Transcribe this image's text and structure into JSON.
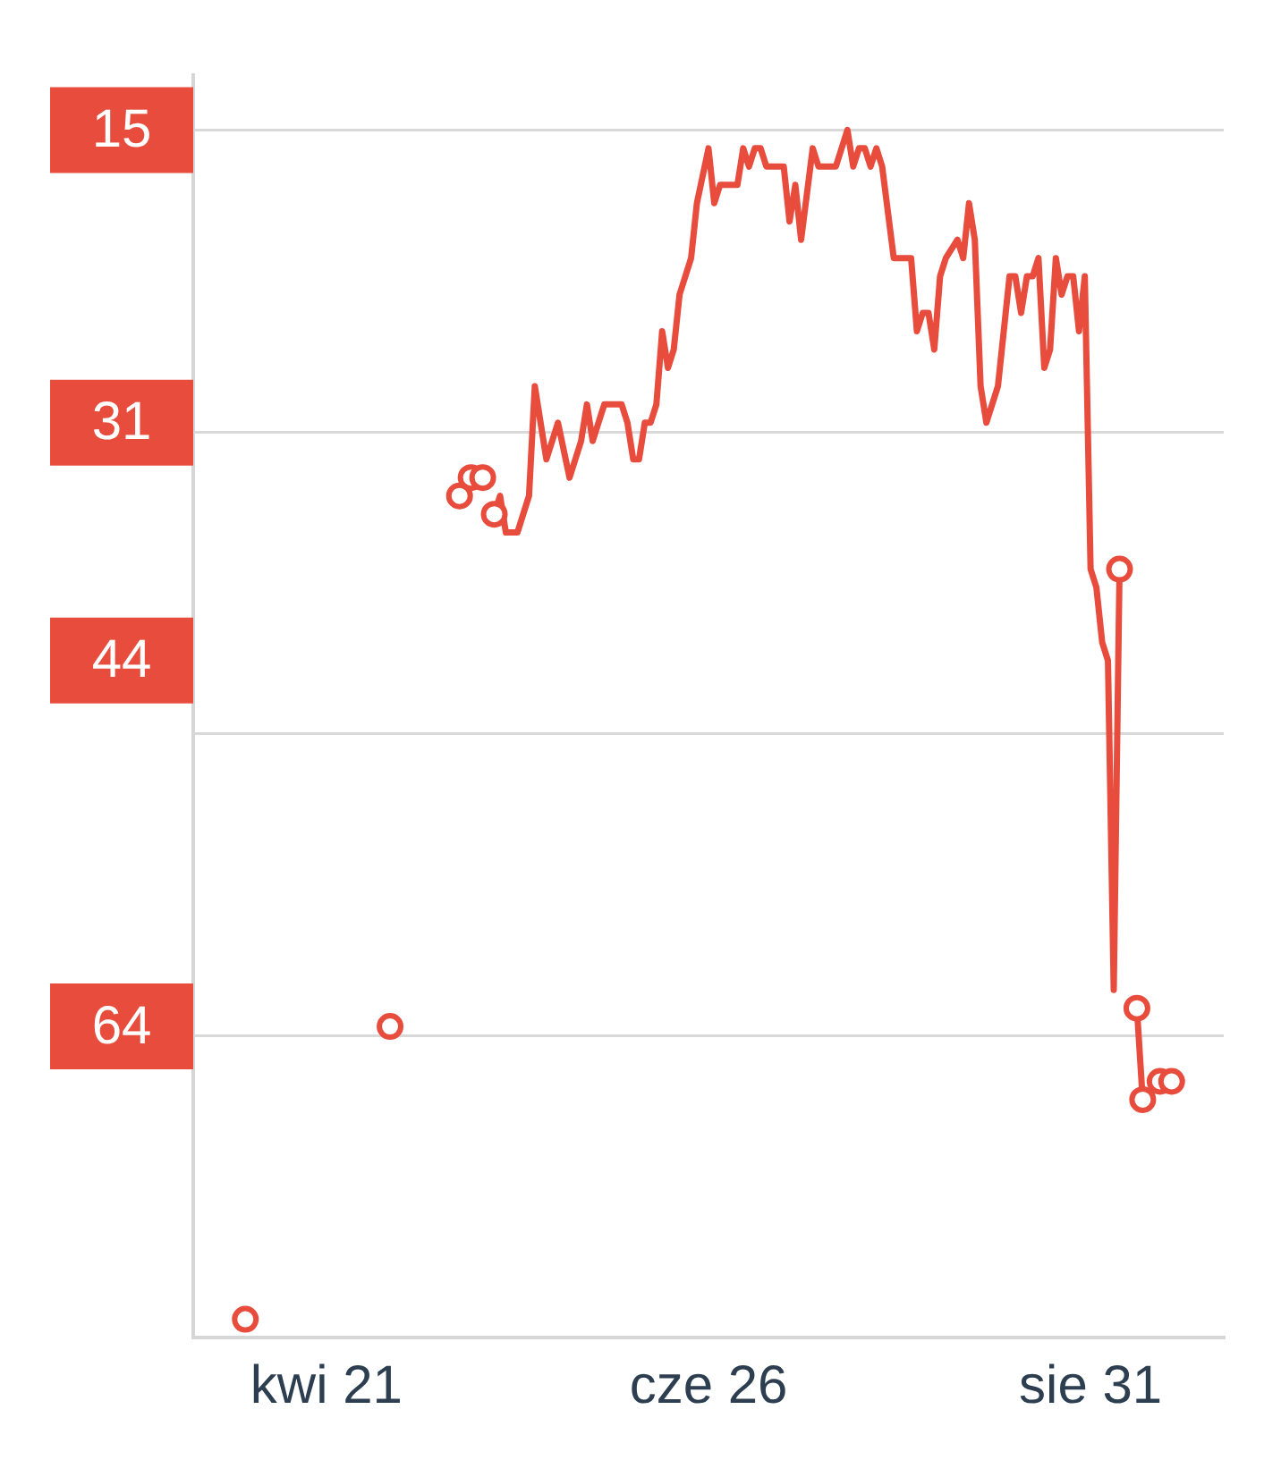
{
  "chart_data": {
    "type": "line",
    "line_style": "solid",
    "grid": "y",
    "xlim": [
      "--03-29",
      "--09-23"
    ],
    "xticks": [
      {
        "value": "--04-21",
        "label": "kwi 21"
      },
      {
        "value": "--06-26",
        "label": "cze 26"
      },
      {
        "value": "--08-31",
        "label": "sie 31"
      }
    ],
    "ylim": [
      81,
      12
    ],
    "yticks": [
      15,
      {
        "value": 15,
        "label": null
      },
      31,
      {
        "value": 31.5,
        "label": null
      },
      44,
      {
        "value": 48,
        "label": null
      },
      64,
      {
        "value": 64.5,
        "label": null
      }
    ],
    "series": [
      {
        "marker": "none",
        "color": "#e84c3d",
        "x": [
          "--05-20",
          "--05-21",
          "--05-22",
          "--05-24",
          "--05-25",
          "--05-26",
          "--05-27",
          "--05-29",
          "--05-30",
          "--05-31",
          "--06-02",
          "--06-03",
          "--06-04",
          "--06-05",
          "--06-06",
          "--06-07",
          "--06-08",
          "--06-11",
          "--06-12",
          "--06-13",
          "--06-14",
          "--06-15",
          "--06-16",
          "--06-17",
          "--06-18",
          "--06-19",
          "--06-20",
          "--06-21",
          "--06-23",
          "--06-24",
          "--06-26",
          "--06-27",
          "--06-28",
          "--07-01",
          "--07-02",
          "--07-03",
          "--07-04",
          "--07-05",
          "--07-06",
          "--07-09",
          "--07-10",
          "--07-11",
          "--07-12",
          "--07-14",
          "--07-15",
          "--07-18",
          "--07-20",
          "--07-21",
          "--07-22",
          "--07-23",
          "--07-24",
          "--07-25",
          "--07-26",
          "--07-28",
          "--07-31",
          "--08-01",
          "--08-02",
          "--08-03",
          "--08-04",
          "--08-05",
          "--08-06",
          "--08-08",
          "--08-09",
          "--08-10",
          "--08-11",
          "--08-12",
          "--08-13",
          "--08-15",
          "--08-17",
          "--08-18",
          "--08-19",
          "--08-20",
          "--08-21",
          "--08-22",
          "--08-23",
          "--08-24",
          "--08-25",
          "--08-26",
          "--08-27",
          "--08-28",
          "--08-29",
          "--08-30",
          "--08-31",
          "--09-01",
          "--09-02",
          "--09-03",
          "--09-04",
          "--09-05",
          "--09-06",
          "--09-08",
          "--09-09"
        ],
        "values": [
          36,
          35,
          37,
          37,
          36,
          35,
          29,
          33,
          32,
          31,
          34,
          33,
          32,
          30,
          32,
          31,
          30,
          30,
          31,
          33,
          33,
          31,
          31,
          30,
          26,
          28,
          27,
          24,
          22,
          19,
          16,
          19,
          18,
          18,
          16,
          17,
          16,
          16,
          17,
          17,
          20,
          18,
          21,
          16,
          17,
          17,
          15,
          17,
          16,
          16,
          17,
          16,
          17,
          22,
          22,
          26,
          25,
          25,
          27,
          23,
          22,
          21,
          22,
          19,
          21,
          29,
          31,
          29,
          23,
          23,
          25,
          23,
          23,
          22,
          28,
          27,
          22,
          24,
          23,
          23,
          26,
          23,
          39,
          40,
          43,
          44,
          62,
          39,
          null,
          63,
          68
        ]
      },
      {
        "type": "scatter",
        "marker": "circle",
        "color": "#e84c3d",
        "x": [
          "--04-07",
          "--05-02",
          "--05-14",
          "--05-16",
          "--05-18",
          "--05-20",
          "--09-05",
          "--09-08",
          "--09-09",
          "--09-12",
          "--09-14"
        ],
        "values": [
          80,
          64,
          35,
          34,
          34,
          36,
          39,
          63,
          68,
          67,
          67
        ]
      }
    ]
  }
}
